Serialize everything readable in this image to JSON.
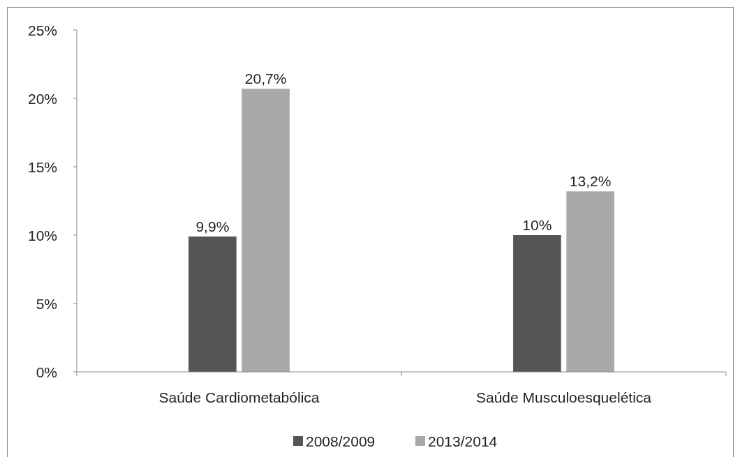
{
  "chart_data": {
    "type": "bar",
    "categories": [
      "Saúde Cardiometabólica",
      "Saúde Musculoesquelética"
    ],
    "series": [
      {
        "name": "2008/2009",
        "color": "#555555",
        "values": [
          9.9,
          10
        ],
        "value_labels": [
          "9,9%",
          "10%"
        ]
      },
      {
        "name": "2013/2014",
        "color": "#a9a9a9",
        "values": [
          20.7,
          13.2
        ],
        "value_labels": [
          "20,7%",
          "13,2%"
        ]
      }
    ],
    "ylim": [
      0,
      25
    ],
    "yticks": [
      {
        "value": 0,
        "label": "0%"
      },
      {
        "value": 5,
        "label": "5%"
      },
      {
        "value": 10,
        "label": "10%"
      },
      {
        "value": 15,
        "label": "15%"
      },
      {
        "value": 20,
        "label": "20%"
      },
      {
        "value": 25,
        "label": "25%"
      }
    ],
    "grid": false,
    "legend": "bottom"
  }
}
